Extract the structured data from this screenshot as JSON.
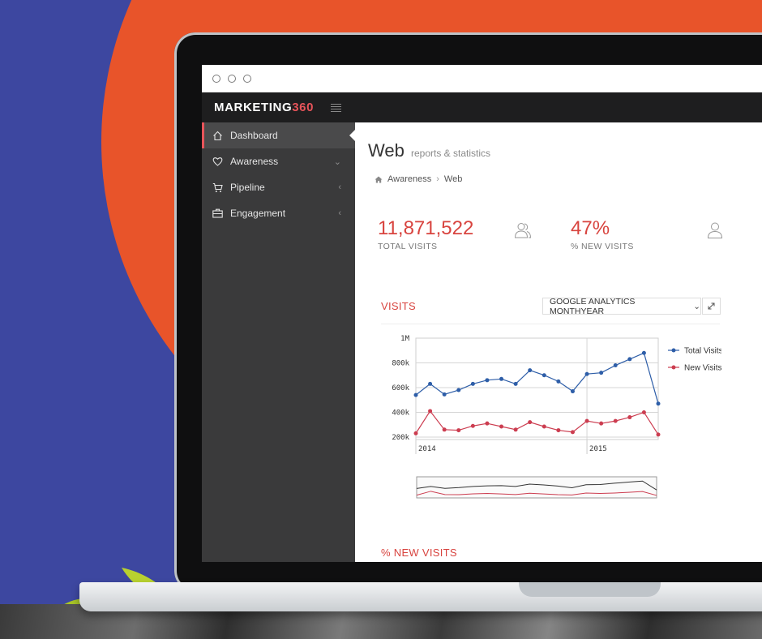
{
  "window": {
    "controls": [
      "close",
      "minimize",
      "maximize"
    ]
  },
  "header": {
    "logo_text": "MARKETING",
    "logo_number": "360",
    "menu_icon": "hamburger-icon"
  },
  "sidebar": {
    "items": [
      {
        "label": "Dashboard",
        "icon": "home-icon",
        "active": true
      },
      {
        "label": "Awareness",
        "icon": "heart-icon",
        "chevron": "⌄"
      },
      {
        "label": "Pipeline",
        "icon": "cart-icon",
        "chevron": "‹"
      },
      {
        "label": "Engagement",
        "icon": "briefcase-icon",
        "chevron": "‹"
      }
    ]
  },
  "page": {
    "title": "Web",
    "subtitle": "reports & statistics",
    "breadcrumb": [
      "Awareness",
      "Web"
    ]
  },
  "stats": [
    {
      "value": "11,871,522",
      "label": "TOTAL VISITS",
      "icon": "users-icon"
    },
    {
      "value": "47%",
      "label": "% NEW VISITS",
      "icon": "user-icon"
    }
  ],
  "visits_section": {
    "title": "VISITS",
    "dropdown_value": "GOOGLE ANALYTICS MONTHYEAR",
    "expand_icon": "expand-icon"
  },
  "new_visits_section": {
    "title": "% NEW VISITS"
  },
  "colors": {
    "accent": "#d8443f",
    "total_series": "#2e5ea8",
    "new_series": "#cc3d50",
    "sidebar": "#3a3a3b"
  },
  "chart_data": {
    "type": "line",
    "y_ticks": [
      "1M",
      "800k",
      "600k",
      "400k",
      "200k"
    ],
    "y_tick_values": [
      1000000,
      800000,
      600000,
      400000,
      200000
    ],
    "x_labels": [
      "2014",
      "2015"
    ],
    "x_label_index": [
      0,
      12
    ],
    "ylim": [
      180000,
      1000000
    ],
    "grid": true,
    "legend_position": "right",
    "series": [
      {
        "name": "Total Visits",
        "values": [
          540000,
          630000,
          545000,
          580000,
          630000,
          660000,
          670000,
          630000,
          740000,
          700000,
          650000,
          570000,
          710000,
          720000,
          780000,
          830000,
          880000,
          470000
        ]
      },
      {
        "name": "New Visits",
        "values": [
          230000,
          410000,
          260000,
          255000,
          290000,
          310000,
          285000,
          260000,
          320000,
          285000,
          255000,
          240000,
          330000,
          310000,
          330000,
          360000,
          400000,
          220000
        ]
      }
    ]
  }
}
